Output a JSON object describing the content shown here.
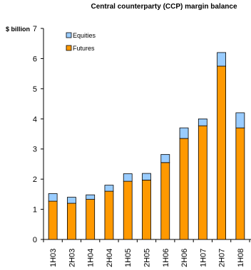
{
  "chart_data": {
    "type": "bar",
    "stacked": true,
    "title": "Central counterparty (CCP) margin balance",
    "ylabel": "$ billion",
    "xlabel": "",
    "categories": [
      "1H03",
      "2H03",
      "1H04",
      "2H04",
      "1H05",
      "2H05",
      "1H06",
      "2H06",
      "1H07",
      "2H07",
      "1H08"
    ],
    "series": [
      {
        "name": "Futures",
        "color": "#ff9900",
        "values": [
          1.27,
          1.2,
          1.33,
          1.6,
          1.93,
          1.97,
          2.55,
          3.35,
          3.77,
          5.75,
          3.7
        ]
      },
      {
        "name": "Equities",
        "color": "#99ccff",
        "values": [
          0.25,
          0.2,
          0.15,
          0.2,
          0.25,
          0.22,
          0.27,
          0.35,
          0.23,
          0.45,
          0.5
        ]
      }
    ],
    "ylim": [
      0,
      7
    ],
    "yticks": [
      0,
      1,
      2,
      3,
      4,
      5,
      6,
      7
    ],
    "grid": false,
    "legend": "top-left"
  }
}
